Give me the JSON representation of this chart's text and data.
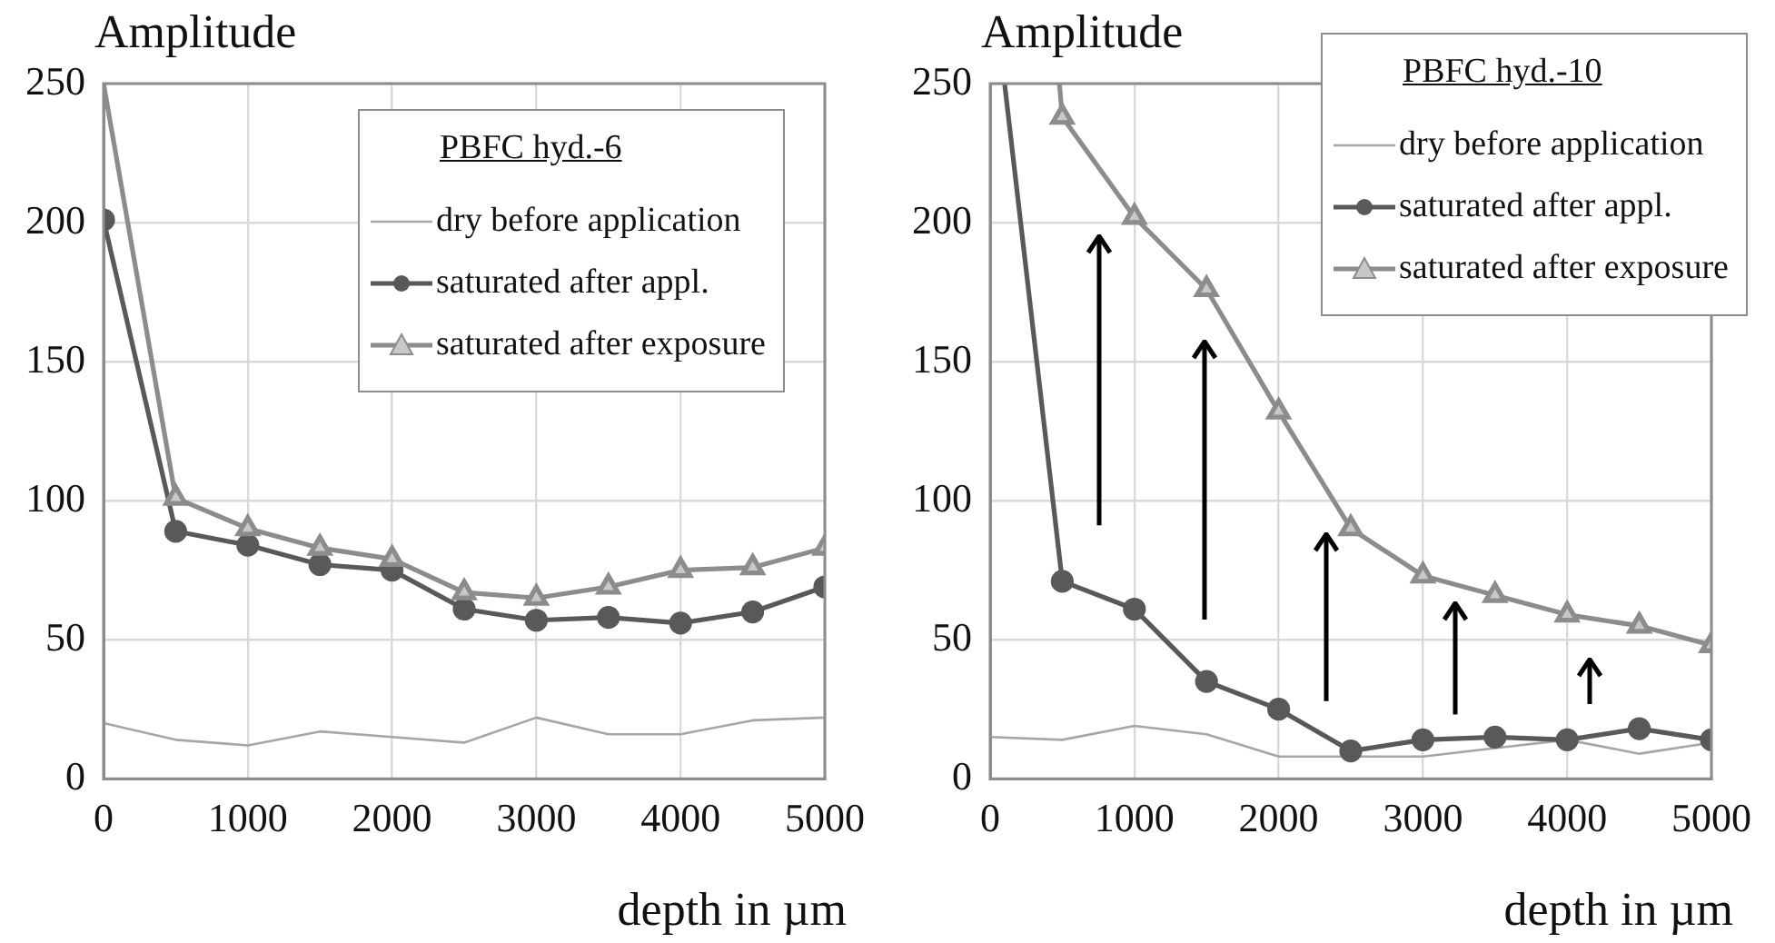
{
  "chart_data": [
    {
      "type": "line",
      "ylabel": "Amplitude",
      "xlabel": "depth in µm",
      "legend_title": "PBFC hyd.-6",
      "legend": "top right",
      "grid": true,
      "x": [
        0,
        500,
        1000,
        1500,
        2000,
        2500,
        3000,
        3500,
        4000,
        4500,
        5000
      ],
      "xlim": [
        0,
        5000
      ],
      "xticks": [
        0,
        1000,
        2000,
        3000,
        4000,
        5000
      ],
      "ylim": [
        0,
        250
      ],
      "yticks": [
        0,
        50,
        100,
        150,
        200,
        250
      ],
      "series": [
        {
          "name": "dry before application",
          "color": "#a6a6a6",
          "marker": "none",
          "values": [
            20,
            14,
            12,
            17,
            15,
            13,
            22,
            16,
            16,
            21,
            22
          ]
        },
        {
          "name": "saturated after appl.",
          "color": "#595959",
          "marker": "circle",
          "values": [
            201,
            89,
            84,
            77,
            75,
            61,
            57,
            58,
            56,
            60,
            69
          ]
        },
        {
          "name": "saturated after exposure",
          "color": "#8c8c8c",
          "marker": "triangle",
          "values": [
            250,
            101,
            90,
            83,
            79,
            67,
            65,
            69,
            75,
            76,
            83
          ]
        }
      ]
    },
    {
      "type": "line",
      "ylabel": "Amplitude",
      "xlabel": "depth in µm",
      "legend_title": "PBFC hyd.-10",
      "legend": "top right",
      "grid": true,
      "x": [
        0,
        500,
        1000,
        1500,
        2000,
        2500,
        3000,
        3500,
        4000,
        4500,
        5000
      ],
      "xlim": [
        0,
        5000
      ],
      "xticks": [
        0,
        1000,
        2000,
        3000,
        4000,
        5000
      ],
      "ylim": [
        0,
        250
      ],
      "yticks": [
        0,
        50,
        100,
        150,
        200,
        250
      ],
      "series": [
        {
          "name": "dry before application",
          "color": "#a6a6a6",
          "marker": "none",
          "values": [
            15,
            14,
            19,
            16,
            8,
            8,
            8,
            11,
            14,
            9,
            13
          ]
        },
        {
          "name": "saturated after appl.",
          "color": "#595959",
          "marker": "circle",
          "x": [
            100,
            500,
            1000,
            1500,
            2000,
            2500,
            3000,
            3500,
            4000,
            4500,
            5000
          ],
          "values": [
            250,
            71,
            61,
            35,
            25,
            10,
            14,
            15,
            14,
            18,
            14
          ]
        },
        {
          "name": "saturated after exposure",
          "color": "#8c8c8c",
          "marker": "triangle",
          "x": [
            480,
            500,
            1000,
            1500,
            2000,
            2500,
            3000,
            3500,
            4000,
            4500,
            5000
          ],
          "values": [
            250,
            238,
            202,
            176,
            132,
            90,
            73,
            66,
            59,
            55,
            48
          ]
        }
      ]
    }
  ]
}
